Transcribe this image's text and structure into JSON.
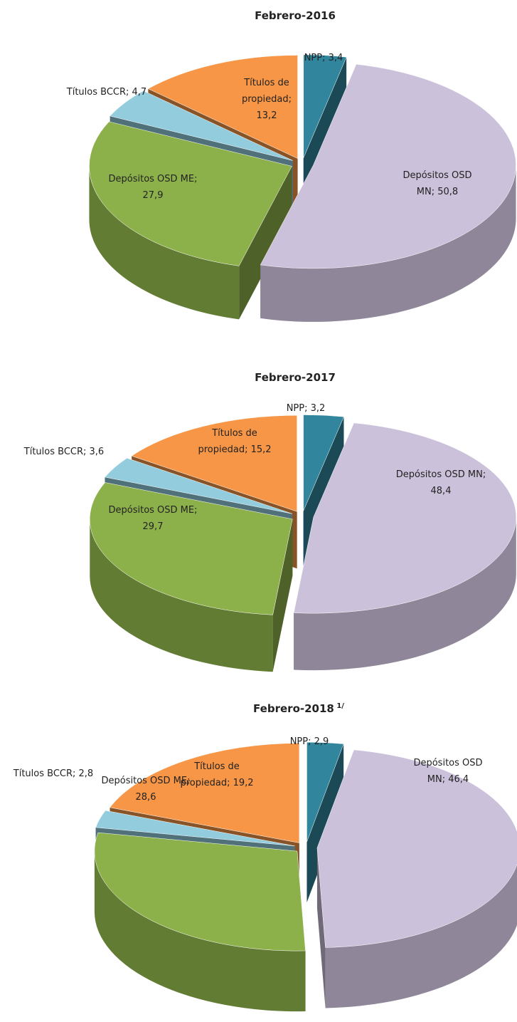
{
  "chart_data": [
    {
      "type": "pie",
      "title": "Febrero-2016",
      "values": [
        3.4,
        50.8,
        27.9,
        4.7,
        13.2
      ],
      "value_labels": [
        "NPP; 3,4",
        "Depósitos OSD MN; 50,8",
        "Depósitos OSD ME; 27,9",
        "Títulos BCCR; 4,7",
        "Títulos de propiedad; 13,2"
      ],
      "colors": [
        "#31859c",
        "#ccc1da",
        "#8db14a",
        "#93cddd",
        "#f79646"
      ]
    },
    {
      "type": "pie",
      "title": "Febrero-2017",
      "values": [
        3.2,
        48.4,
        29.7,
        3.6,
        15.2
      ],
      "value_labels": [
        "NPP; 3,2",
        "Depósitos OSD MN; 48,4",
        "Depósitos OSD ME; 29,7",
        "Títulos BCCR; 3,6",
        "Títulos de propiedad; 15,2"
      ],
      "colors": [
        "#31859c",
        "#ccc1da",
        "#8db14a",
        "#93cddd",
        "#f79646"
      ]
    },
    {
      "type": "pie",
      "title": "Febrero-2018",
      "title_note": "1/",
      "values": [
        2.9,
        46.4,
        28.6,
        2.8,
        19.2
      ],
      "value_labels": [
        "NPP; 2,9",
        "Depósitos OSD MN; 46,4",
        "Depósitos OSD ME; 28,6",
        "Títulos BCCR; 2,8",
        "Títulos de propiedad; 19,2"
      ],
      "colors": [
        "#31859c",
        "#ccc1da",
        "#8db14a",
        "#93cddd",
        "#f79646"
      ]
    }
  ]
}
